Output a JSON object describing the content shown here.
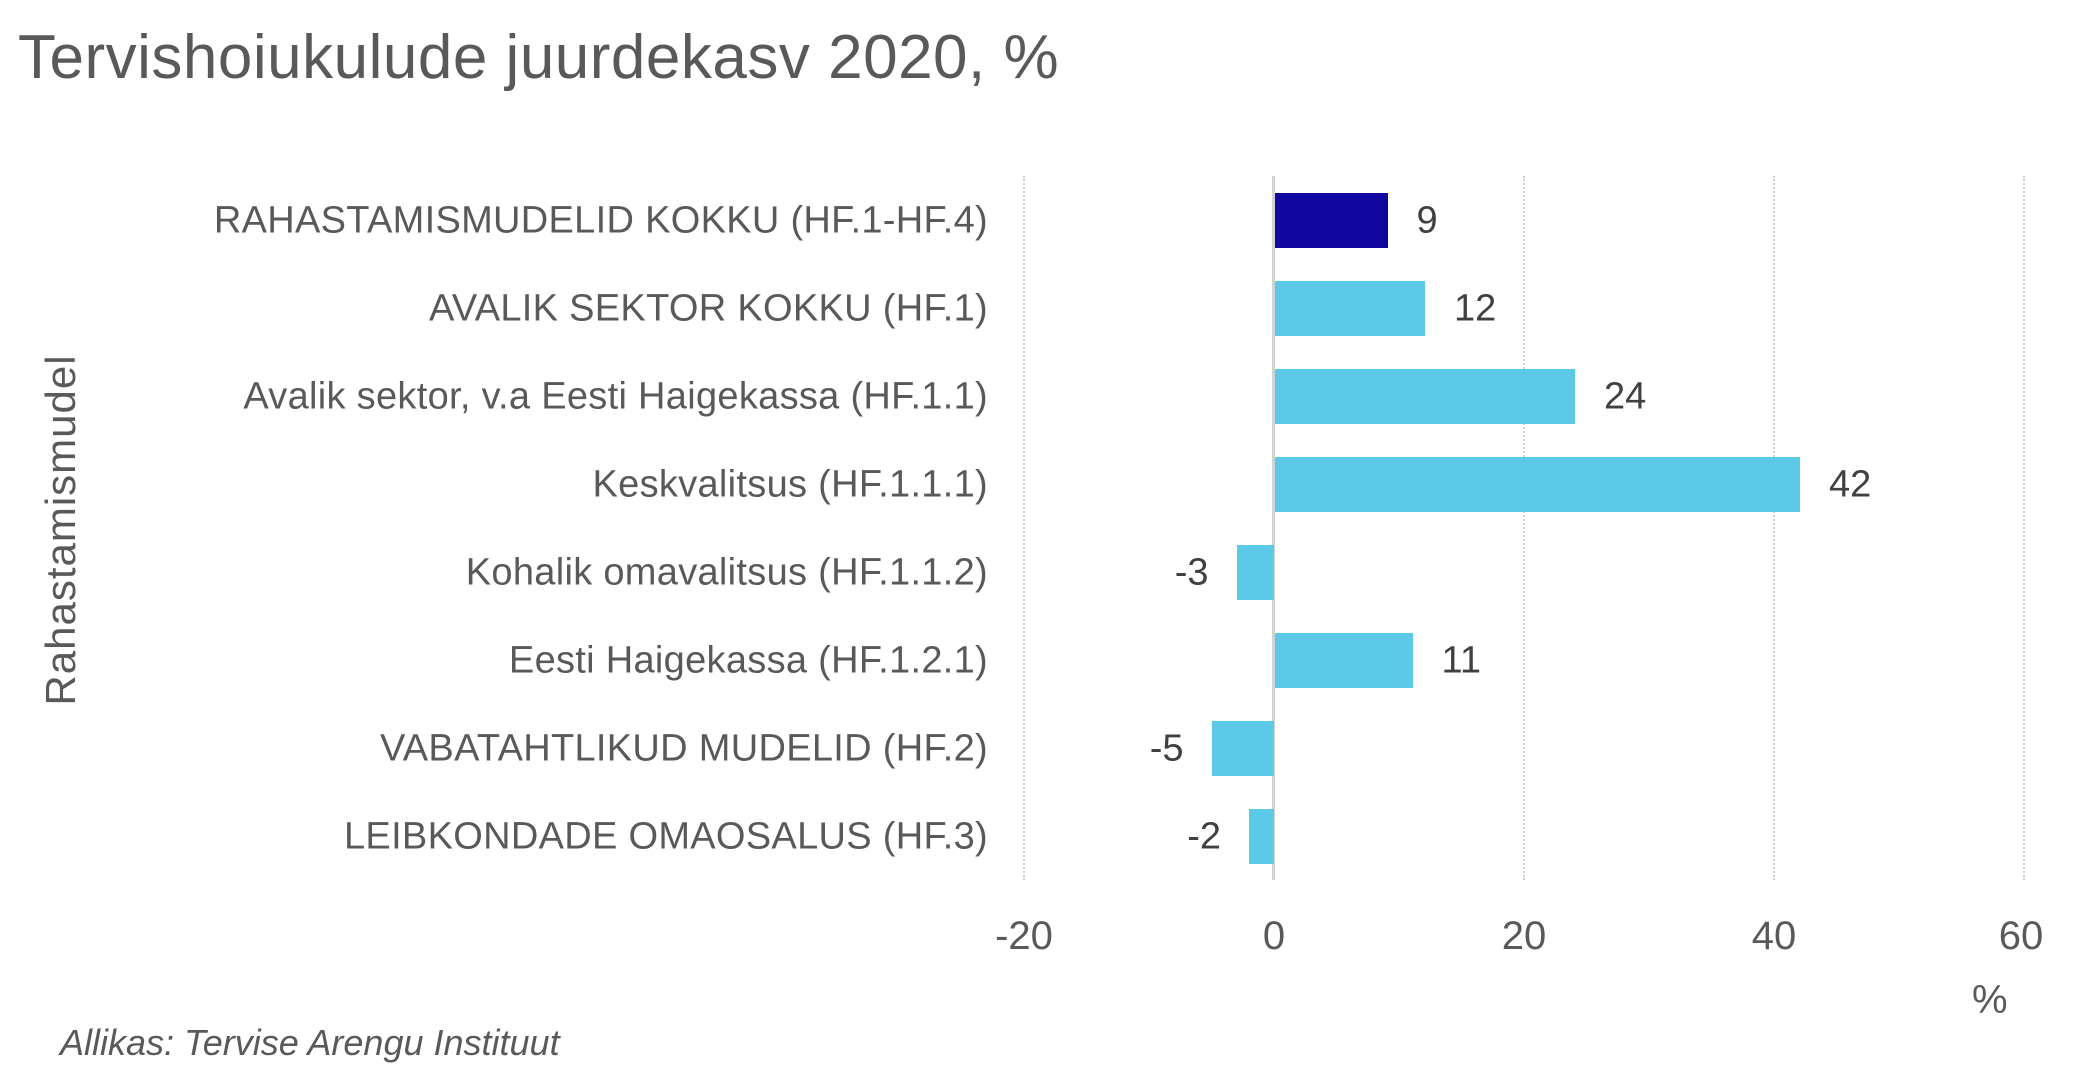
{
  "title": "Tervishoiukulude juurdekasv 2020, %",
  "source": "Allikas: Tervise Arengu Instituut",
  "colors": {
    "highlight": "#1006A0",
    "bar": "#5BCAE8",
    "text": "#595959",
    "value_text": "#404040",
    "grid": "#D0D0D0",
    "zero_line": "#D3D3D3"
  },
  "axes": {
    "y_label": "Rahastamismudel",
    "x_label": "%",
    "x_ticks": [
      "-20",
      "0",
      "20",
      "40",
      "60"
    ]
  },
  "rows": [
    {
      "label": "RAHASTAMISMUDELID KOKKU (HF.1-HF.4)",
      "value": "9"
    },
    {
      "label": "AVALIK SEKTOR KOKKU (HF.1)",
      "value": "12"
    },
    {
      "label": "Avalik sektor, v.a Eesti Haigekassa (HF.1.1)",
      "value": "24"
    },
    {
      "label": "Keskvalitsus (HF.1.1.1)",
      "value": "42"
    },
    {
      "label": "Kohalik omavalitsus (HF.1.1.2)",
      "value": "-3"
    },
    {
      "label": "Eesti Haigekassa (HF.1.2.1)",
      "value": "11"
    },
    {
      "label": "VABATAHTLIKUD MUDELID (HF.2)",
      "value": "-5"
    },
    {
      "label": "LEIBKONDADE OMAOSALUS (HF.3)",
      "value": "-2"
    }
  ],
  "chart_data": {
    "type": "bar",
    "orientation": "horizontal",
    "title": "Tervishoiukulude juurdekasv 2020, %",
    "xlabel": "%",
    "ylabel": "Rahastamismudel",
    "categories": [
      "RAHASTAMISMUDELID KOKKU (HF.1-HF.4)",
      "AVALIK SEKTOR KOKKU (HF.1)",
      "Avalik sektor, v.a Eesti Haigekassa (HF.1.1)",
      "Keskvalitsus (HF.1.1.1)",
      "Kohalik omavalitsus (HF.1.1.2)",
      "Eesti Haigekassa (HF.1.2.1)",
      "VABATAHTLIKUD MUDELID (HF.2)",
      "LEIBKONDADE OMAOSALUS (HF.3)"
    ],
    "values": [
      9,
      12,
      24,
      42,
      -3,
      11,
      -5,
      -2
    ],
    "highlighted_category": "RAHASTAMISMUDELID KOKKU (HF.1-HF.4)",
    "xlim": [
      -20,
      60
    ],
    "x_ticks": [
      -20,
      0,
      20,
      40,
      60
    ],
    "grid": "vertical dotted",
    "data_labels": true,
    "legend": null,
    "source": "Allikas: Tervise Arengu Instituut"
  }
}
